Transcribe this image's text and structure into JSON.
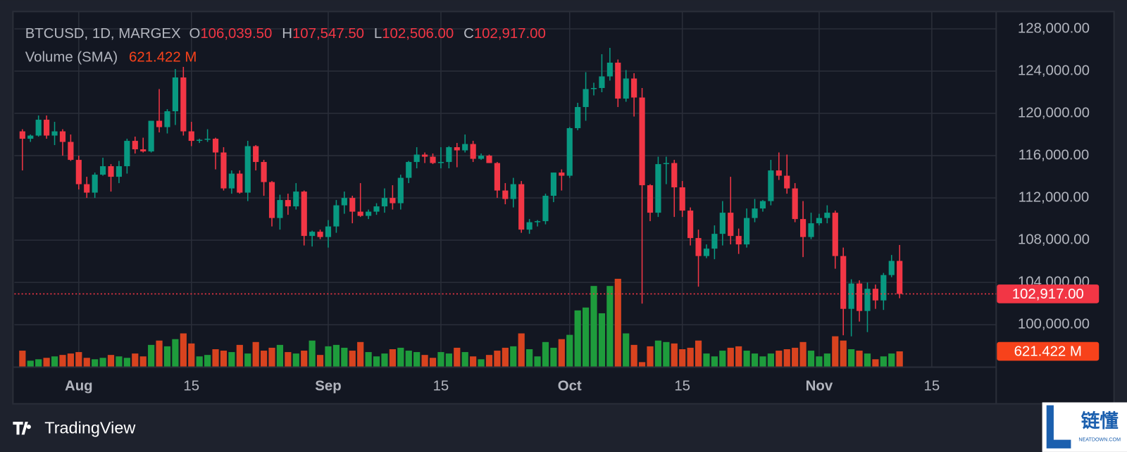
{
  "chart_data": {
    "type": "candlestick",
    "title": "BTCUSD, 1D, MARGEX",
    "ohlc_prefixes": [
      "O",
      "H",
      "L",
      "C"
    ],
    "ohlc_labels": [
      "106,039.50",
      "107,547.50",
      "102,506.00",
      "102,917.00"
    ],
    "volume_title": "Volume (SMA)",
    "volume_label": "621.422 M",
    "branding": "TradingView",
    "watermark": {
      "text": "链懂",
      "sub": "NEATDOWN.COM"
    },
    "up_color": "#089981",
    "down_color": "#f23645",
    "volume_up_color": "#1e9c3c",
    "volume_down_color": "#d8431f",
    "volume_tag_color": "#f7421b",
    "grid": true,
    "xlim": [
      "07-24",
      "11-23"
    ],
    "xticks": [
      {
        "value": "08-01",
        "label": "Aug"
      },
      {
        "value": "08-15",
        "label": "15"
      },
      {
        "value": "09-01",
        "label": "Sep"
      },
      {
        "value": "09-15",
        "label": "15"
      },
      {
        "value": "10-01",
        "label": "Oct"
      },
      {
        "value": "10-15",
        "label": "15"
      },
      {
        "value": "11-01",
        "label": "Nov"
      },
      {
        "value": "11-15",
        "label": "15"
      }
    ],
    "ylim": [
      96050,
      129500
    ],
    "yticks": [
      {
        "value": 100000,
        "label": "100,000.00"
      },
      {
        "value": 104000,
        "label": "104,000.00"
      },
      {
        "value": 108000,
        "label": "108,000.00"
      },
      {
        "value": 112000,
        "label": "112,000.00"
      },
      {
        "value": 116000,
        "label": "116,000.00"
      },
      {
        "value": 120000,
        "label": "120,000.00"
      },
      {
        "value": 124000,
        "label": "124,000.00"
      },
      {
        "value": 128000,
        "label": "128,000.00"
      }
    ],
    "volume_lim": [
      0,
      14560
    ],
    "x": [
      "07-25",
      "07-26",
      "07-27",
      "07-28",
      "07-29",
      "07-30",
      "07-31",
      "08-01",
      "08-02",
      "08-03",
      "08-04",
      "08-05",
      "08-06",
      "08-07",
      "08-08",
      "08-09",
      "08-10",
      "08-11",
      "08-12",
      "08-13",
      "08-14",
      "08-15",
      "08-16",
      "08-17",
      "08-18",
      "08-19",
      "08-20",
      "08-21",
      "08-22",
      "08-23",
      "08-24",
      "08-25",
      "08-26",
      "08-27",
      "08-28",
      "08-29",
      "08-30",
      "08-31",
      "09-01",
      "09-02",
      "09-03",
      "09-04",
      "09-05",
      "09-06",
      "09-07",
      "09-08",
      "09-09",
      "09-10",
      "09-11",
      "09-12",
      "09-13",
      "09-14",
      "09-15",
      "09-16",
      "09-17",
      "09-18",
      "09-19",
      "09-20",
      "09-21",
      "09-22",
      "09-23",
      "09-24",
      "09-25",
      "09-26",
      "09-27",
      "09-28",
      "09-29",
      "09-30",
      "10-01",
      "10-02",
      "10-03",
      "10-04",
      "10-05",
      "10-06",
      "10-07",
      "10-08",
      "10-09",
      "10-10",
      "10-11",
      "10-12",
      "10-13",
      "10-14",
      "10-15",
      "10-16",
      "10-17",
      "10-18",
      "10-19",
      "10-20",
      "10-21",
      "10-22",
      "10-23",
      "10-24",
      "10-25",
      "10-26",
      "10-27",
      "10-28",
      "10-29",
      "10-30",
      "10-31",
      "11-01",
      "11-02",
      "11-03",
      "11-04",
      "11-05",
      "11-06",
      "11-07",
      "11-08",
      "11-09",
      "11-10",
      "11-11"
    ],
    "open": [
      118300,
      117600,
      117900,
      119400,
      117900,
      118300,
      117300,
      115600,
      113300,
      112500,
      114200,
      115000,
      114000,
      115000,
      117400,
      116600,
      116400,
      119300,
      118700,
      120200,
      123400,
      118300,
      117400,
      117500,
      117600,
      116300,
      112900,
      114300,
      112500,
      116900,
      115400,
      113500,
      110100,
      111800,
      111200,
      112600,
      108400,
      108800,
      108300,
      109300,
      111300,
      112000,
      110700,
      110300,
      110700,
      111200,
      112000,
      111500,
      113900,
      115400,
      116100,
      115900,
      115300,
      115400,
      116800,
      116500,
      117100,
      115700,
      116000,
      115300,
      112700,
      111900,
      113300,
      109000,
      109700,
      109800,
      112200,
      114400,
      114100,
      118600,
      120600,
      122300,
      122400,
      123500,
      124800,
      121400,
      123300,
      121500,
      113200,
      110600,
      115200,
      115300,
      113000,
      110800,
      108200,
      106500,
      107200,
      108600,
      110600,
      108400,
      107600,
      110100,
      111000,
      111700,
      114600,
      114100,
      112900,
      110000,
      108300,
      109600,
      110100,
      110600,
      106500,
      101500,
      103900,
      101300,
      103400,
      102300,
      104700,
      106039.5
    ],
    "high": [
      118500,
      118000,
      119800,
      119800,
      119200,
      118500,
      118000,
      116000,
      114000,
      114400,
      115800,
      115200,
      115500,
      117600,
      117800,
      117700,
      119300,
      122300,
      120400,
      124200,
      124400,
      119200,
      117600,
      118500,
      117700,
      116800,
      114600,
      114600,
      117400,
      117000,
      115600,
      113600,
      112300,
      112400,
      113400,
      112700,
      108900,
      109000,
      109900,
      111800,
      112600,
      112200,
      113400,
      110900,
      111500,
      112900,
      113200,
      114200,
      115500,
      116800,
      116300,
      116200,
      116800,
      116900,
      117200,
      118000,
      117400,
      116200,
      116100,
      115400,
      113400,
      113900,
      113600,
      110000,
      109900,
      112400,
      114400,
      114700,
      118700,
      121000,
      123900,
      122900,
      125600,
      126200,
      125100,
      124100,
      123800,
      122400,
      113300,
      115900,
      115900,
      115600,
      113600,
      111100,
      109000,
      107600,
      109400,
      111700,
      114000,
      109100,
      111000,
      111900,
      111800,
      115600,
      116300,
      116100,
      113400,
      111700,
      110600,
      110500,
      111300,
      110800,
      107300,
      104300,
      104200,
      104000,
      103800,
      104900,
      106600,
      107547.5
    ],
    "low": [
      114600,
      117300,
      117800,
      117600,
      117000,
      116000,
      115500,
      112800,
      112000,
      112000,
      114100,
      112600,
      113400,
      114300,
      116200,
      116300,
      116300,
      118200,
      118100,
      118900,
      117900,
      116900,
      117200,
      117300,
      114700,
      112700,
      112400,
      112400,
      111700,
      114600,
      112200,
      109300,
      109000,
      110400,
      110900,
      107500,
      107400,
      108100,
      107300,
      108700,
      110500,
      109600,
      110200,
      110000,
      110400,
      110600,
      110900,
      110900,
      113400,
      114800,
      115300,
      115200,
      114800,
      114800,
      114900,
      116300,
      115400,
      115600,
      115300,
      112000,
      111400,
      111100,
      108700,
      108600,
      109300,
      109500,
      111600,
      112700,
      113900,
      118400,
      119300,
      121700,
      122000,
      123100,
      120600,
      121100,
      119700,
      102000,
      109800,
      110200,
      113300,
      110200,
      110200,
      107500,
      103600,
      106300,
      106200,
      107500,
      107600,
      106700,
      107300,
      109700,
      110700,
      111300,
      113700,
      112400,
      109700,
      106400,
      108100,
      109400,
      109600,
      105300,
      99000,
      98900,
      100300,
      99300,
      101500,
      101400,
      104500,
      102506
    ],
    "close": [
      117600,
      117900,
      119400,
      117900,
      118300,
      117300,
      115600,
      113300,
      112500,
      114200,
      115000,
      114000,
      115000,
      117400,
      116600,
      116400,
      119300,
      118700,
      120200,
      123400,
      118300,
      117400,
      117500,
      117600,
      116300,
      112900,
      114300,
      112500,
      116900,
      115400,
      113500,
      110100,
      111800,
      111200,
      112600,
      108400,
      108800,
      108300,
      109300,
      111300,
      112000,
      110700,
      110300,
      110700,
      111200,
      112000,
      111500,
      113900,
      115400,
      116100,
      115900,
      115300,
      115400,
      116800,
      116500,
      117100,
      115700,
      116000,
      115300,
      112700,
      111900,
      113300,
      109000,
      109700,
      109800,
      112200,
      114400,
      114100,
      118600,
      120600,
      122300,
      122400,
      123500,
      124800,
      121400,
      123300,
      121500,
      113200,
      110600,
      115200,
      115300,
      113000,
      110800,
      108200,
      106500,
      107200,
      108600,
      110600,
      108400,
      107600,
      110100,
      111000,
      111700,
      114600,
      114100,
      112900,
      110000,
      108300,
      109600,
      110100,
      110600,
      106500,
      101500,
      103900,
      101300,
      103400,
      102300,
      104700,
      106039.5,
      102917
    ],
    "volume": [
      651,
      237,
      296,
      355,
      414,
      474,
      533,
      592,
      355,
      296,
      355,
      474,
      414,
      355,
      533,
      414,
      888,
      1066,
      829,
      1125,
      1362,
      947,
      414,
      474,
      710,
      651,
      592,
      888,
      533,
      1006,
      651,
      770,
      888,
      592,
      533,
      651,
      1066,
      474,
      829,
      888,
      770,
      651,
      1006,
      592,
      414,
      533,
      710,
      770,
      651,
      592,
      474,
      355,
      592,
      533,
      770,
      592,
      414,
      296,
      474,
      651,
      770,
      829,
      1362,
      710,
      414,
      1006,
      770,
      1125,
      1302,
      2309,
      2427,
      3315,
      2190,
      3315,
      3611,
      1362,
      888,
      178,
      829,
      1066,
      1006,
      947,
      710,
      770,
      1066,
      533,
      414,
      651,
      770,
      829,
      651,
      533,
      414,
      533,
      651,
      710,
      770,
      1006,
      651,
      414,
      533,
      1243,
      1066,
      710,
      651,
      533,
      296,
      414,
      533,
      621.422
    ]
  }
}
